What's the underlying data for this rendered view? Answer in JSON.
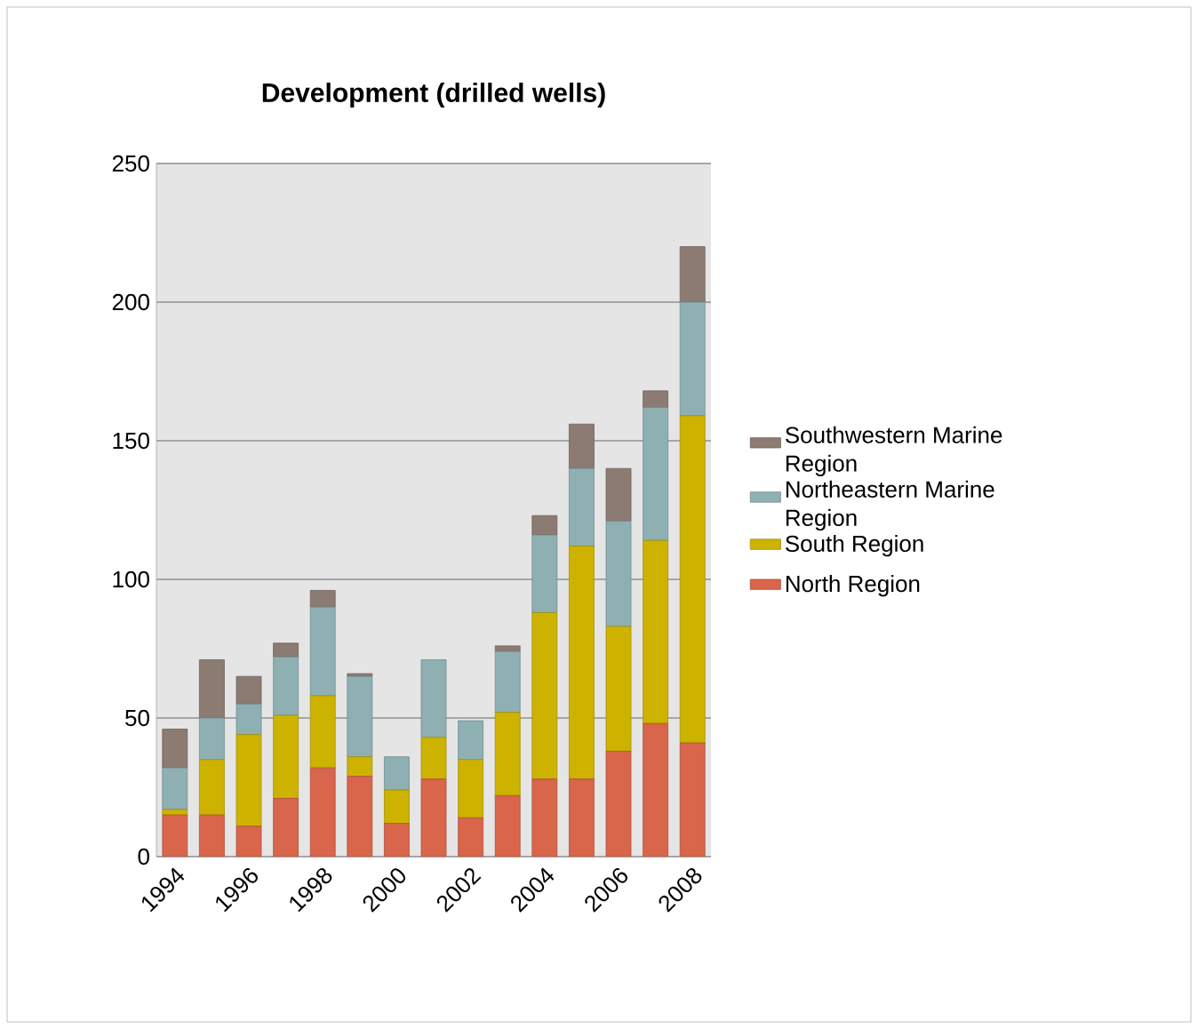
{
  "chart_data": {
    "type": "bar",
    "title": "Development (drilled wells)",
    "stacked": true,
    "categories": [
      "1994",
      null,
      "1996",
      null,
      "1998",
      null,
      "2000",
      null,
      "2002",
      null,
      "2004",
      null,
      "2006",
      null,
      "2008"
    ],
    "series": [
      {
        "name": "North Region",
        "color": "#d9654b",
        "values": [
          15,
          15,
          11,
          21,
          32,
          29,
          12,
          28,
          14,
          22,
          28,
          28,
          38,
          48,
          41
        ]
      },
      {
        "name": "South Region",
        "color": "#cdb300",
        "values": [
          2,
          20,
          33,
          30,
          26,
          7,
          12,
          15,
          21,
          30,
          60,
          84,
          45,
          66,
          118
        ]
      },
      {
        "name": "Northeastern Marine Region",
        "color": "#8fb0b2",
        "values": [
          15,
          15,
          11,
          21,
          32,
          29,
          12,
          28,
          14,
          22,
          28,
          28,
          38,
          48,
          41
        ]
      },
      {
        "name": "Southwestern Marine Region",
        "color": "#8c7b72",
        "values": [
          14,
          21,
          10,
          5,
          6,
          1,
          0,
          0,
          0,
          2,
          7,
          16,
          19,
          6,
          20
        ]
      }
    ],
    "ylim": [
      0,
      250
    ],
    "yticks": [
      0,
      50,
      100,
      150,
      200,
      250
    ],
    "grid": "y",
    "legend": "right"
  }
}
